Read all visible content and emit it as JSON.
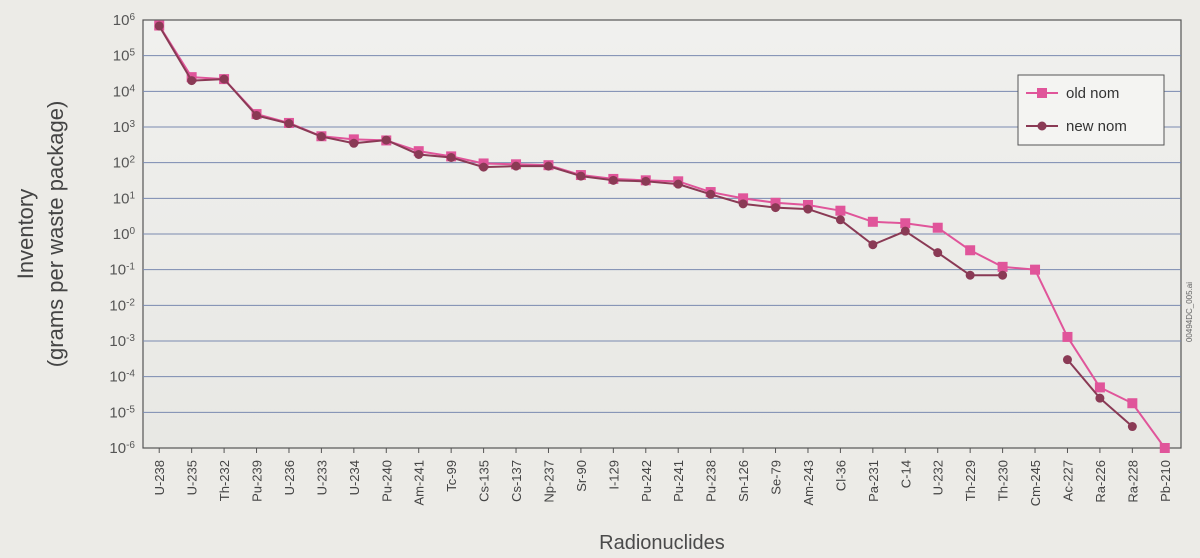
{
  "chart_data": {
    "type": "line",
    "xlabel": "Radionuclides",
    "ylabel_line1": "Inventory",
    "ylabel_line2": "(grams per waste package)",
    "y_scale": "log",
    "ylim": [
      1e-06,
      1000000.0
    ],
    "y_tick_exponents": [
      6,
      5,
      4,
      3,
      2,
      1,
      0,
      -1,
      -2,
      -3,
      -4,
      -5,
      -6
    ],
    "grid": true,
    "legend_position": "top-right",
    "image_code": "00494DC_005.ai",
    "categories": [
      "U-238",
      "U-235",
      "Th-232",
      "Pu-239",
      "U-236",
      "U-233",
      "U-234",
      "Pu-240",
      "Am-241",
      "Tc-99",
      "Cs-135",
      "Cs-137",
      "Np-237",
      "Sr-90",
      "I-129",
      "Pu-242",
      "Pu-241",
      "Pu-238",
      "Sn-126",
      "Se-79",
      "Am-243",
      "Cl-36",
      "Pa-231",
      "C-14",
      "U-232",
      "Th-229",
      "Th-230",
      "Cm-245",
      "Ac-227",
      "Ra-226",
      "Ra-228",
      "Pb-210"
    ],
    "series": [
      {
        "name": "old nom",
        "color": "#e0559a",
        "marker": "square",
        "values": [
          700000,
          25000,
          22000,
          2300,
          1300,
          550,
          450,
          420,
          210,
          150,
          95,
          90,
          85,
          45,
          35,
          32,
          30,
          15,
          10,
          7.5,
          6.5,
          4.5,
          2.2,
          2,
          1.5,
          0.35,
          0.12,
          0.1,
          0.0013,
          5e-05,
          1.8e-05,
          1e-06
        ]
      },
      {
        "name": "new nom",
        "color": "#8a3a55",
        "marker": "circle",
        "values": [
          680000,
          20000,
          22000,
          2100,
          1250,
          540,
          350,
          430,
          170,
          140,
          75,
          80,
          80,
          42,
          32,
          30,
          25,
          13,
          7,
          5.5,
          5,
          2.5,
          0.5,
          1.2,
          0.3,
          0.07,
          0.07,
          null,
          0.0003,
          2.5e-05,
          4e-06,
          null
        ]
      }
    ]
  }
}
